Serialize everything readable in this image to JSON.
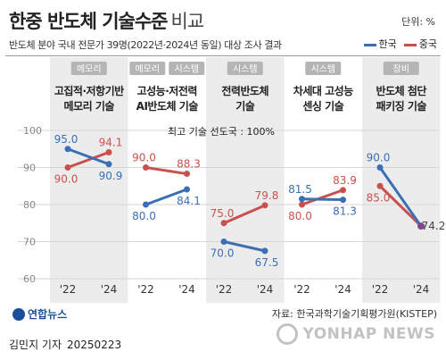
{
  "header": {
    "title": "한중 반도체 기술수준",
    "title_light": "비교",
    "unit": "단위: %",
    "subtitle": "반도체 분야 국내 전문가 39명(2022년·2024년 동일) 대상 조사 결과"
  },
  "legend": [
    {
      "name": "한국",
      "color": "#3a6fb5"
    },
    {
      "name": "중국",
      "color": "#c8514e"
    }
  ],
  "reference_line": {
    "label": "최고 기술 선도국 : 100%",
    "value": 100
  },
  "chart_data": {
    "type": "line",
    "title": "한중 반도체 기술수준 비교",
    "ylim": [
      60,
      100
    ],
    "yticks": [
      60,
      70,
      80,
      90,
      100
    ],
    "x": [
      "'22",
      "'24"
    ],
    "panels": [
      {
        "tags": [
          "메모리"
        ],
        "label": [
          "고집적·저항기반",
          "메모리 기술"
        ],
        "shaded": true,
        "series": [
          {
            "name": "한국",
            "values": [
              95.0,
              90.9
            ]
          },
          {
            "name": "중국",
            "values": [
              90.0,
              94.1
            ]
          }
        ]
      },
      {
        "tags": [
          "메모리",
          "시스템"
        ],
        "label": [
          "고성능·저전력",
          "AI반도체 기술"
        ],
        "shaded": false,
        "series": [
          {
            "name": "한국",
            "values": [
              80.0,
              84.1
            ]
          },
          {
            "name": "중국",
            "values": [
              90.0,
              88.3
            ]
          }
        ]
      },
      {
        "tags": [
          "시스템"
        ],
        "label": [
          "전력반도체",
          "기술"
        ],
        "shaded": true,
        "series": [
          {
            "name": "한국",
            "values": [
              70.0,
              67.5
            ]
          },
          {
            "name": "중국",
            "values": [
              75.0,
              79.8
            ]
          }
        ]
      },
      {
        "tags": [
          "시스템"
        ],
        "label": [
          "차세대 고성능",
          "센싱 기술"
        ],
        "shaded": false,
        "series": [
          {
            "name": "한국",
            "values": [
              81.5,
              81.3
            ]
          },
          {
            "name": "중국",
            "values": [
              80.0,
              83.9
            ]
          }
        ]
      },
      {
        "tags": [
          "장비"
        ],
        "label": [
          "반도체 첨단",
          "패키징 기술"
        ],
        "shaded": true,
        "series": [
          {
            "name": "한국",
            "values": [
              90.0,
              74.2
            ]
          },
          {
            "name": "중국",
            "values": [
              85.0,
              74.2
            ]
          }
        ]
      }
    ]
  },
  "footer": {
    "source": "자료: 한국과학기술기획평가원(KISTEP)",
    "logo": "연합뉴스",
    "byline": "김민지 기자",
    "date": "20250223",
    "watermark": "YONHAP NEWS"
  },
  "colors": {
    "korea": "#3a6fb5",
    "china": "#c8514e",
    "shade": "#ececec",
    "tag_bg": "#b5b5b5",
    "grid": "#d6d6d6"
  }
}
